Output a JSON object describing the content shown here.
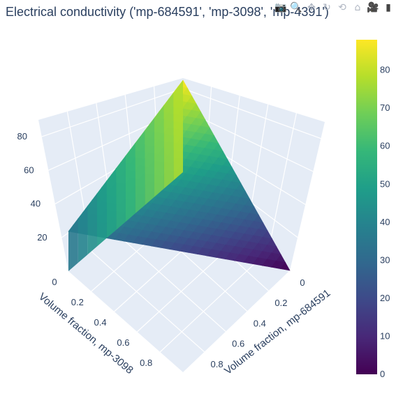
{
  "title": "Electrical conductivity ('mp-684591', 'mp-3098', 'mp-4391')",
  "modebar": {
    "buttons": [
      {
        "name": "camera-icon",
        "glyph": "📷"
      },
      {
        "name": "zoom-icon",
        "glyph": "🔍"
      },
      {
        "name": "pan-icon",
        "glyph": "✥"
      },
      {
        "name": "orbit-icon",
        "glyph": "↻"
      },
      {
        "name": "turntable-icon",
        "glyph": "⟲"
      },
      {
        "name": "reset-camera-icon",
        "glyph": "⌂"
      },
      {
        "name": "video-camera-icon",
        "glyph": "🎥"
      }
    ],
    "logo": {
      "name": "plotly-logo-icon",
      "glyph": "▮"
    }
  },
  "chart_data": {
    "type": "surface",
    "colorscale": "viridis",
    "colors": [
      "#440154",
      "#482878",
      "#3e4989",
      "#31688e",
      "#26828e",
      "#1f9e89",
      "#35b779",
      "#6ece58",
      "#b5de2b",
      "#fde725"
    ],
    "x_axis": {
      "title": "Volume fraction, mp-684591",
      "range": [
        0,
        1
      ],
      "ticks": [
        "0",
        "0.2",
        "0.4",
        "0.6",
        "0.8"
      ]
    },
    "y_axis": {
      "title": "Volume fraction, mp-3098",
      "range": [
        0,
        1
      ],
      "ticks": [
        "0",
        "0.2",
        "0.4",
        "0.6",
        "0.8"
      ]
    },
    "z_axis": {
      "title": "",
      "range": [
        0,
        90
      ],
      "ticks": [
        "20",
        "40",
        "60",
        "80"
      ]
    },
    "colorbar": {
      "range": [
        0,
        88
      ],
      "ticks": [
        "0",
        "10",
        "20",
        "30",
        "40",
        "50",
        "60",
        "70",
        "80"
      ]
    },
    "surface_corners": [
      {
        "x": 0,
        "y": 0,
        "z": 88
      },
      {
        "x": 1,
        "y": 0,
        "z": 0
      },
      {
        "x": 0,
        "y": 1,
        "z": 38
      }
    ]
  }
}
